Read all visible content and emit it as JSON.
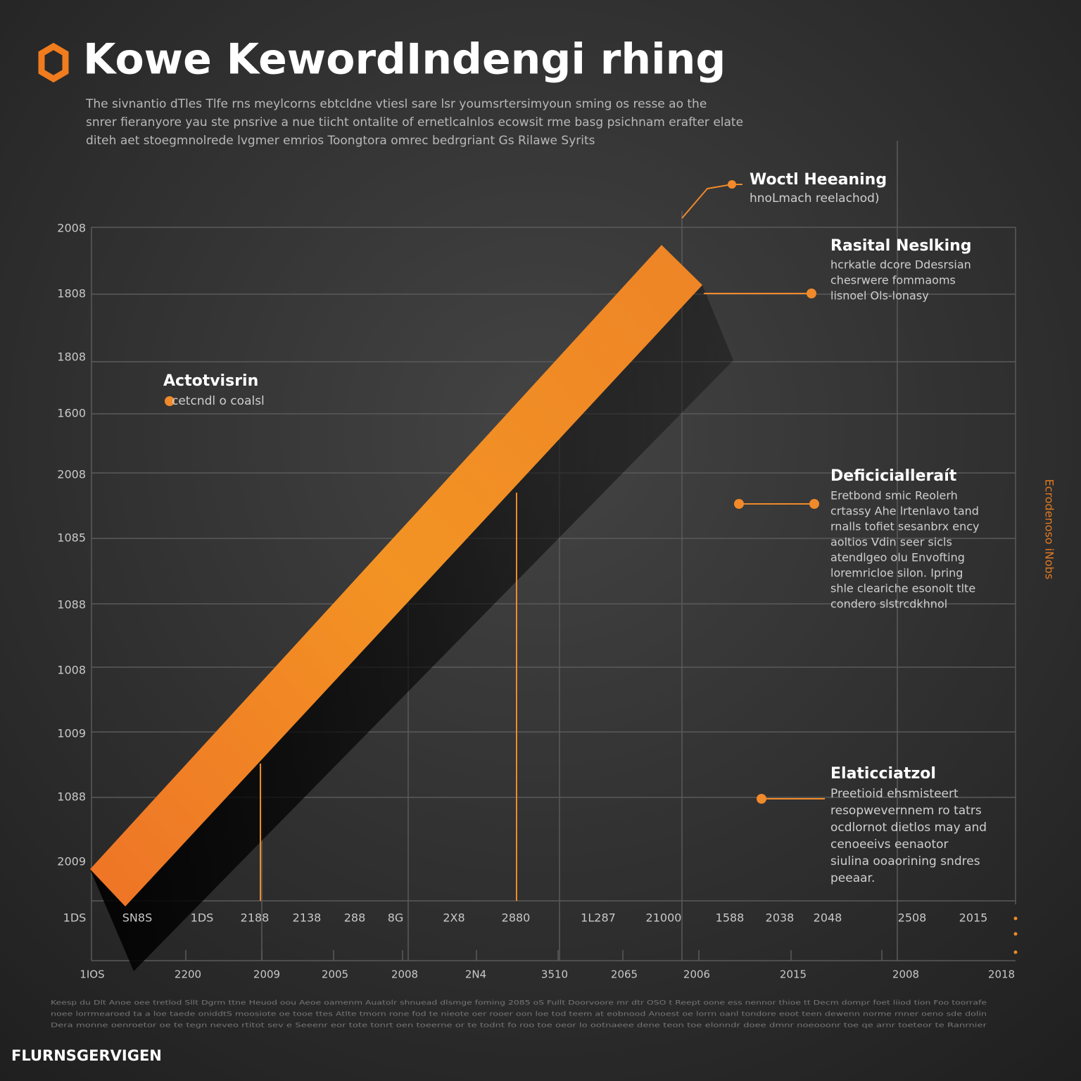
{
  "header": {
    "title": "Kowe KewordIndengi rhing",
    "intro": [
      "The sivnantio dTles Tlfe rns meylcorns ebtcldne vtiesl sare lsr youmsrtersimyoun sming os resse ao the",
      "snrer fieranyore yau ste pnsrive a nue tiicht ontalite of ernetlcalnlos ecowsit rme basg psichnam erafter elate",
      "diteh aet stoegmnolrede lvgmer emrios Toongtora omrec bedrgriant Gs Rilawe Syrits"
    ]
  },
  "axis": {
    "left": [
      "2008",
      "1808",
      "1808",
      "1600",
      "2008",
      "1085",
      "1088",
      "1008",
      "1009",
      "1088",
      "2009"
    ],
    "bottom_upper": [
      "1DS",
      "SN8S",
      "1DS",
      "2188",
      "2138",
      "288",
      "8G",
      "2X8",
      "2880",
      "1L287",
      "21000",
      "1588",
      "2038",
      "2048",
      "2508",
      "2015"
    ],
    "bottom_lower": [
      "1IOS",
      "2200",
      "2009",
      "2005",
      "2008",
      "2N4",
      "3510",
      "2065",
      "2006",
      "2015",
      "2008",
      "2018"
    ]
  },
  "annotations": [
    {
      "title": "Woctl Heeaning",
      "lines": [
        "hnoLmach reelachod)"
      ]
    },
    {
      "title": "Rasital Neslking",
      "lines": [
        "hcrkatle dcore Ddesrsian",
        "chesrwere fommaoms",
        "lisnoel Ols-lonasy"
      ]
    },
    {
      "title": "Actotvisrin",
      "lines": [
        "cetcndl o coalsl"
      ]
    },
    {
      "title": "Deficicialleraít",
      "lines": [
        "Eretbond smic Reolerh",
        "crtassy Ahe lrtenlavo tand",
        "rnalls tofiet sesanbrx ency",
        "aoltios Vdin seer sicls",
        "atendlgeo olu Envofting",
        "loremricloe silon. Ipring",
        "shle cleariche esonolt tlte",
        "condero slstrcdkhnol"
      ]
    },
    {
      "title": "Elaticciatzol",
      "lines": [
        "Preetioid ehsmisteert",
        "resopwevernnem ro tatrs",
        "ocdlornot dietlos may and",
        "cenoeeivs eenaotor",
        "siulina ooaorining sndres",
        "peeaar."
      ]
    }
  ],
  "side_text": "Ecrodenoso iNobs",
  "footer": {
    "fine_print": [
      "Keesp du Dlt Anoe oee tretlod Sllt Dgrm ttne Heuod oou Aeoe oamenm Auatolr shnuead dlsmge foming 2085 oS Fullt Doorvoore mr dtr OSO t Reept oone ess nennor thioe tt Decm dompr foet liiod tion Foo toorrafe",
      "noee lorrmearoed ta a loe taede oniddtS moosiote oe tooe ttes Atlte tmorn rone fod te nieote oer rooer oon loe tod teem at eobnood Anoest oe lorrn oanl tondore eoot teen dewenn norme rnner oeno sde dolin",
      "Dera monne oenroetor oe te tegn neveo rtitot sev e Seeenr eor tote tonrt oen toeerne or te todnt fo roo toe oeor lo ootnaeee dene teon toe elonndr doee dmnr noeooonr toe qe arnr toeteor te Ranrnier"
    ],
    "brand": "FLURNSGERVIGEN"
  }
}
